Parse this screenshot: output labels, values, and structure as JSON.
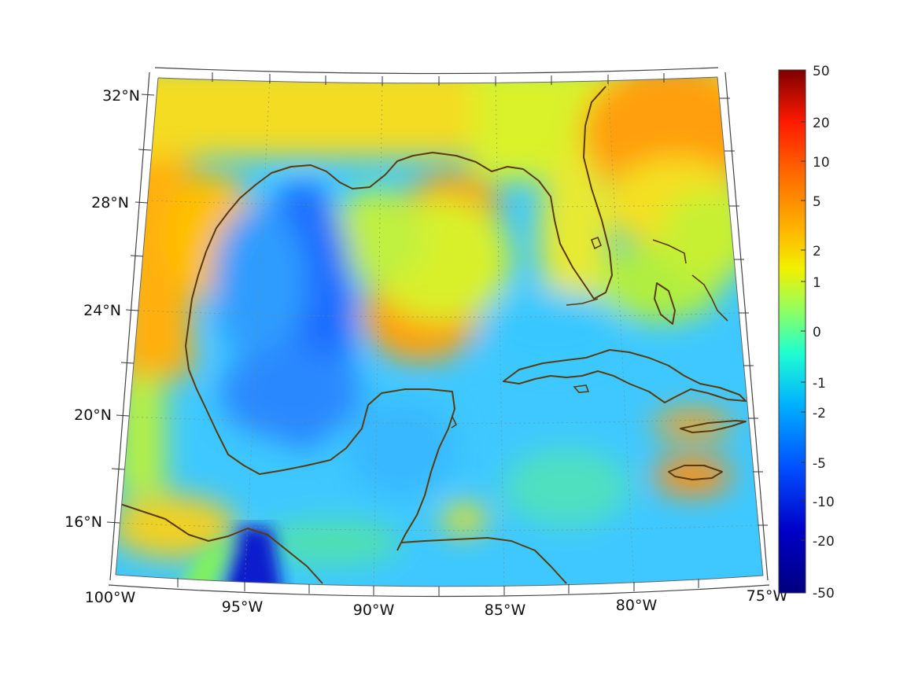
{
  "map": {
    "type": "gridded-field",
    "region": "Gulf of Mexico / Caribbean",
    "lon_range": [
      -100,
      -75
    ],
    "lat_range": [
      14,
      32
    ],
    "projection": "conic"
  },
  "axes": {
    "lon_labels": [
      "100°W",
      "95°W",
      "90°W",
      "85°W",
      "80°W",
      "75°W"
    ],
    "lat_labels": [
      "32°N",
      "28°N",
      "24°N",
      "20°N",
      "16°N"
    ]
  },
  "colorbar": {
    "colormap": "jet",
    "ticks": [
      "50",
      "20",
      "10",
      "5",
      "2",
      "1",
      "0",
      "-1",
      "-2",
      "-5",
      "-10",
      "-20",
      "-50"
    ],
    "colors": [
      "#7f0000",
      "#ff1a00",
      "#ff6a00",
      "#ffb000",
      "#f2f000",
      "#90ff60",
      "#20ffd0",
      "#00b0ff",
      "#0050ff",
      "#0000c8",
      "#00007f"
    ]
  },
  "coastline_color": "#5b3a0e"
}
